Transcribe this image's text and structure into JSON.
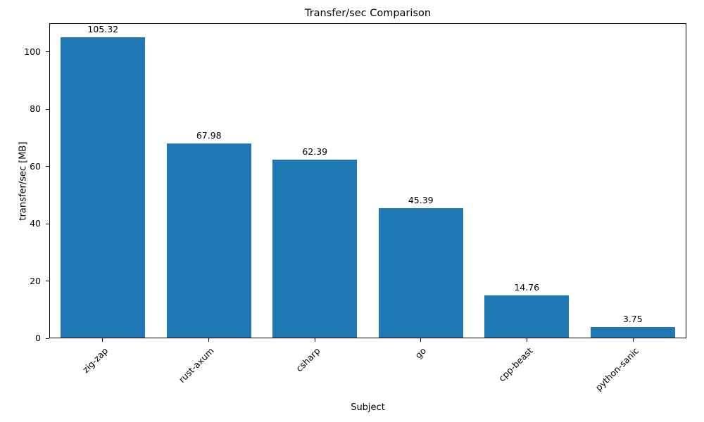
{
  "chart_data": {
    "type": "bar",
    "title": "Transfer/sec Comparison",
    "xlabel": "Subject",
    "ylabel": "transfer/sec [MB]",
    "categories": [
      "zig-zap",
      "rust-axum",
      "csharp",
      "go",
      "cpp-beast",
      "python-sanic"
    ],
    "values": [
      105.32,
      67.98,
      62.39,
      45.39,
      14.76,
      3.75
    ],
    "value_labels": [
      "105.32",
      "67.98",
      "62.39",
      "45.39",
      "14.76",
      "3.75"
    ],
    "bar_color": "#1f77b4",
    "ylim": [
      0,
      110
    ],
    "yticks": [
      0,
      20,
      40,
      60,
      80,
      100
    ],
    "grid": false,
    "legend": false,
    "bar_width_fraction": 0.8
  }
}
